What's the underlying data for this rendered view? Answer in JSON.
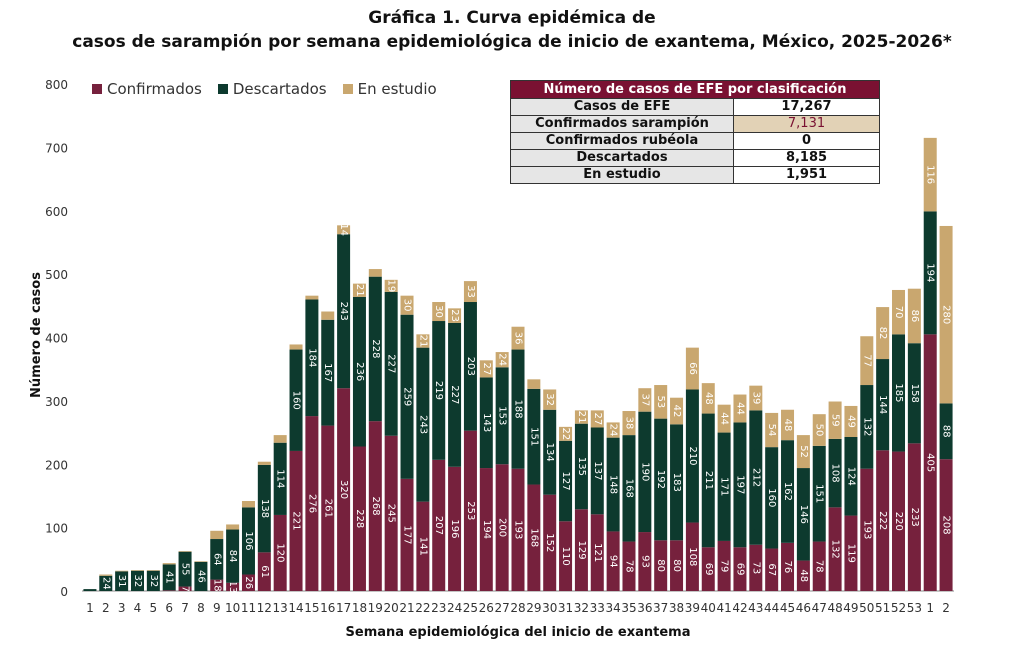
{
  "title": {
    "line1": "Gráfica 1. Curva epidémica de",
    "line2": "casos de sarampión por semana epidemiológica de inicio de exantema, México, 2025-2026*"
  },
  "colors": {
    "confirmados": "#76213d",
    "descartados": "#0d3a2e",
    "en_estudio": "#c9a76f",
    "header": "#7a1132"
  },
  "legend": {
    "confirmados": "Confirmados",
    "descartados": "Descartados",
    "en_estudio": "En estudio"
  },
  "table": {
    "header": "Número de casos de EFE por clasificación",
    "rows": [
      {
        "label": "Casos de EFE",
        "value": "17,267"
      },
      {
        "label": "Confirmados sarampión",
        "value": "7,131"
      },
      {
        "label": "Confirmados rubéola",
        "value": "0"
      },
      {
        "label": "Descartados",
        "value": "8,185"
      },
      {
        "label": "En estudio",
        "value": "1,951"
      }
    ]
  },
  "chart_data": {
    "type": "bar",
    "stacked": true,
    "xlabel": "Semana epidemiológica del inicio de exantema",
    "ylabel": "Número de casos",
    "ylim": [
      0,
      800
    ],
    "yticks": [
      0,
      100,
      200,
      300,
      400,
      500,
      600,
      700,
      800
    ],
    "categories": [
      "1",
      "2",
      "3",
      "4",
      "5",
      "6",
      "7",
      "8",
      "9",
      "10",
      "11",
      "12",
      "13",
      "14",
      "15",
      "16",
      "17",
      "18",
      "19",
      "20",
      "21",
      "22",
      "23",
      "24",
      "25",
      "26",
      "27",
      "28",
      "29",
      "30",
      "31",
      "32",
      "33",
      "34",
      "35",
      "36",
      "37",
      "38",
      "39",
      "40",
      "41",
      "42",
      "43",
      "44",
      "45",
      "46",
      "47",
      "48",
      "49",
      "50",
      "51",
      "52",
      "53",
      "1",
      "2"
    ],
    "series": [
      {
        "name": "Confirmados",
        "values": [
          0,
          0,
          0,
          0,
          0,
          1,
          7,
          0,
          18,
          13,
          26,
          61,
          120,
          221,
          276,
          261,
          320,
          228,
          268,
          245,
          177,
          141,
          207,
          196,
          253,
          194,
          200,
          193,
          168,
          152,
          110,
          129,
          121,
          94,
          78,
          93,
          80,
          80,
          108,
          69,
          79,
          69,
          73,
          67,
          76,
          48,
          78,
          132,
          119,
          193,
          222,
          220,
          233,
          405,
          208
        ]
      },
      {
        "name": "Descartados",
        "values": [
          3,
          24,
          31,
          32,
          32,
          41,
          55,
          46,
          64,
          84,
          106,
          138,
          114,
          160,
          184,
          167,
          243,
          236,
          228,
          227,
          259,
          243,
          219,
          227,
          203,
          143,
          153,
          188,
          151,
          134,
          127,
          135,
          137,
          148,
          168,
          190,
          192,
          183,
          210,
          211,
          171,
          197,
          212,
          160,
          162,
          146,
          151,
          108,
          124,
          132,
          144,
          185,
          158,
          194,
          88
        ]
      },
      {
        "name": "En estudio",
        "values": [
          0,
          2,
          1,
          1,
          1,
          2,
          1,
          1,
          13,
          8,
          10,
          5,
          12,
          8,
          6,
          13,
          14,
          21,
          12,
          19,
          30,
          21,
          30,
          23,
          33,
          27,
          24,
          36,
          15,
          32,
          22,
          21,
          27,
          24,
          38,
          37,
          53,
          42,
          66,
          48,
          44,
          44,
          39,
          54,
          48,
          52,
          50,
          59,
          49,
          77,
          82,
          70,
          86,
          116,
          280
        ]
      }
    ],
    "bar_labels": {
      "confirmados": [
        null,
        null,
        null,
        null,
        null,
        null,
        "7",
        null,
        "18",
        "13",
        "26",
        "61",
        "120",
        "221",
        "276",
        "261",
        "320",
        "228",
        "268",
        "245",
        "177",
        "141",
        "207",
        "196",
        "253",
        "194",
        "200",
        "193",
        "168",
        "152",
        "110",
        "129",
        "121",
        "94",
        "78",
        "93",
        "80",
        "80",
        "108",
        "69",
        "79",
        "69",
        "73",
        "67",
        "76",
        "48",
        "78",
        "132",
        "119",
        "193",
        "222",
        "220",
        "233",
        "405",
        "208"
      ],
      "descartados": [
        null,
        "24",
        "31",
        "32",
        "32",
        "41",
        "55",
        "46",
        "64",
        "84",
        "106",
        "138",
        "114",
        "160",
        "184",
        "167",
        "243",
        "236",
        "228",
        "227",
        "259",
        "243",
        "219",
        "227",
        "203",
        "143",
        "153",
        "188",
        "151",
        "134",
        "127",
        "135",
        "137",
        "148",
        "168",
        "190",
        "192",
        "183",
        "210",
        "211",
        "171",
        "197",
        "212",
        "160",
        "162",
        "146",
        "151",
        "108",
        "124",
        "132",
        "144",
        "185",
        "158",
        "194",
        "88"
      ],
      "en_estudio": [
        null,
        null,
        null,
        null,
        null,
        null,
        null,
        null,
        null,
        null,
        null,
        null,
        null,
        null,
        null,
        null,
        "14",
        "21",
        null,
        "19",
        "30",
        "21",
        "30",
        "23",
        "33",
        "27",
        "24",
        "36",
        null,
        "32",
        "22",
        "21",
        "27",
        "24",
        "38",
        "37",
        "53",
        "42",
        "66",
        "48",
        "44",
        "44",
        "39",
        "54",
        "48",
        "52",
        "50",
        "59",
        "49",
        "77",
        "82",
        "70",
        "86",
        "116",
        "280"
      ]
    }
  }
}
